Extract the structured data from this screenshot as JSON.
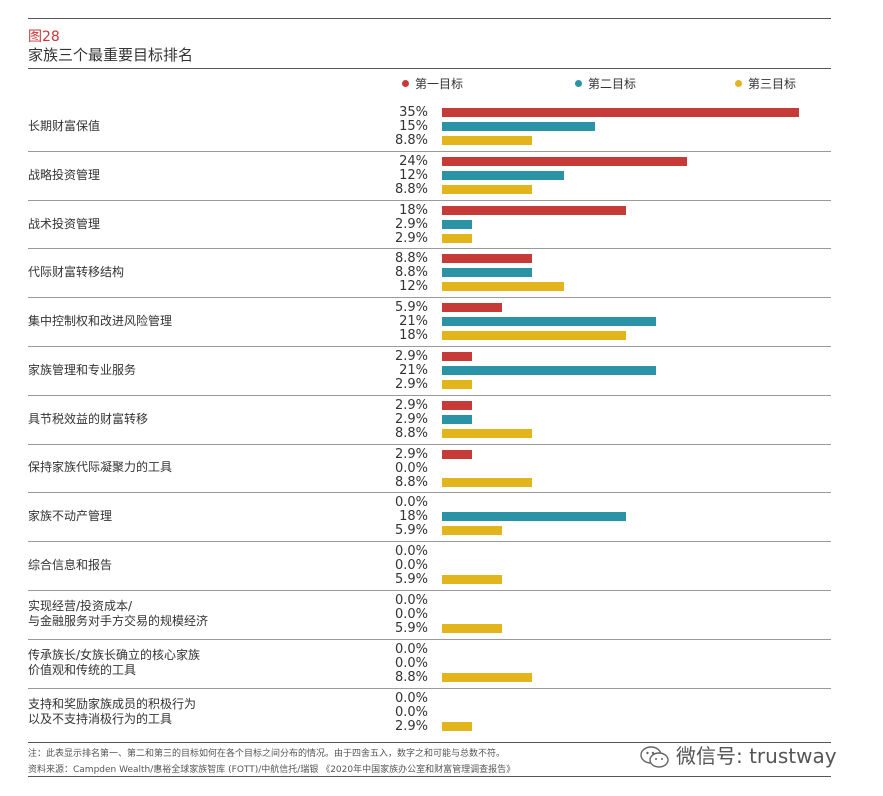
{
  "figure": {
    "label": "图28",
    "title": "家族三个最重要目标排名"
  },
  "colors": {
    "first": "#c63a38",
    "second": "#2a93a6",
    "third": "#e3b51c"
  },
  "legend": [
    "第一目标",
    "第二目标",
    "第三目标"
  ],
  "chart_data": {
    "type": "bar",
    "orientation": "horizontal",
    "title": "家族三个最重要目标排名",
    "unit": "%",
    "xlim": [
      0,
      35
    ],
    "categories": [
      "长期财富保值",
      "战略投资管理",
      "战术投资管理",
      "代际财富转移结构",
      "集中控制权和改进风险管理",
      "家族管理和专业服务",
      "具节税效益的财富转移",
      "保持家族代际凝聚力的工具",
      "家族不动产管理",
      "综合信息和报告",
      "实现经营/投资成本/\n与金融服务对手方交易的规模经济",
      "传承族长/女族长确立的核心家族\n价值观和传统的工具",
      "支持和奖励家族成员的积极行为\n以及不支持消极行为的工具"
    ],
    "series": [
      {
        "name": "第一目标",
        "values": [
          35,
          24,
          18,
          8.8,
          5.9,
          2.9,
          2.9,
          2.9,
          0.0,
          0.0,
          0.0,
          0.0,
          0.0
        ]
      },
      {
        "name": "第二目标",
        "values": [
          15,
          12,
          2.9,
          8.8,
          21,
          21,
          2.9,
          0.0,
          18,
          0.0,
          0.0,
          0.0,
          0.0
        ]
      },
      {
        "name": "第三目标",
        "values": [
          8.8,
          8.8,
          2.9,
          12,
          18,
          2.9,
          8.8,
          8.8,
          5.9,
          5.9,
          5.9,
          8.8,
          2.9
        ]
      }
    ],
    "value_labels": [
      [
        "35%",
        "15%",
        "8.8%"
      ],
      [
        "24%",
        "12%",
        "8.8%"
      ],
      [
        "18%",
        "2.9%",
        "2.9%"
      ],
      [
        "8.8%",
        "8.8%",
        "12%"
      ],
      [
        "5.9%",
        "21%",
        "18%"
      ],
      [
        "2.9%",
        "21%",
        "2.9%"
      ],
      [
        "2.9%",
        "2.9%",
        "8.8%"
      ],
      [
        "2.9%",
        "0.0%",
        "8.8%"
      ],
      [
        "0.0%",
        "18%",
        "5.9%"
      ],
      [
        "0.0%",
        "0.0%",
        "5.9%"
      ],
      [
        "0.0%",
        "0.0%",
        "5.9%"
      ],
      [
        "0.0%",
        "0.0%",
        "8.8%"
      ],
      [
        "0.0%",
        "0.0%",
        "2.9%"
      ]
    ]
  },
  "footer": {
    "note": "注：此表显示排名第一、第二和第三的目标如何在各个目标之间分布的情况。由于四舍五入，数字之和可能与总数不符。",
    "source": "资料来源：Campden Wealth/惠裕全球家族智库 (FOTT)/中航信托/瑞银 《2020年中国家族办公室和财富管理调查报告》"
  },
  "watermark": {
    "text": "微信号: trustway"
  }
}
